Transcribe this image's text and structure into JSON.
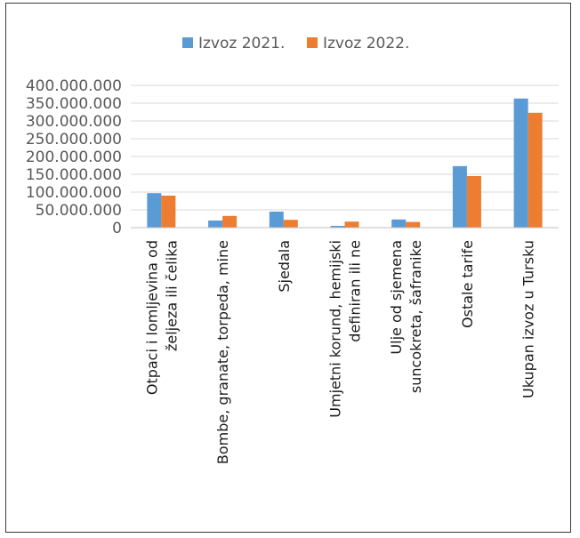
{
  "chart_data": {
    "type": "bar",
    "categories": [
      [
        "Otpaci i lomljevina od",
        "željeza ili čelika"
      ],
      [
        "Bombe, granate, torpeda, mine"
      ],
      [
        "Sjedala"
      ],
      [
        "Umjetni korund, hemijski",
        "definiran ili ne"
      ],
      [
        "Ulje od sjemena",
        "suncokreta, šafranike"
      ],
      [
        "Ostale tarife"
      ],
      [
        "Ukupan izvoz u Tursku"
      ]
    ],
    "series": [
      {
        "name": "Izvoz 2021.",
        "color": "#5b9bd5",
        "values": [
          97000000,
          20000000,
          45000000,
          5000000,
          23000000,
          173000000,
          363000000
        ]
      },
      {
        "name": "Izvoz 2022.",
        "color": "#ed7d31",
        "values": [
          90000000,
          33000000,
          22000000,
          17000000,
          16000000,
          145000000,
          323000000
        ]
      }
    ],
    "yticks": [
      "0",
      "50.000.000",
      "100.000.000",
      "150.000.000",
      "200.000.000",
      "250.000.000",
      "300.000.000",
      "350.000.000",
      "400.000.000"
    ],
    "ylim": [
      0,
      400000000
    ],
    "legend_position": "top",
    "grid": true
  }
}
